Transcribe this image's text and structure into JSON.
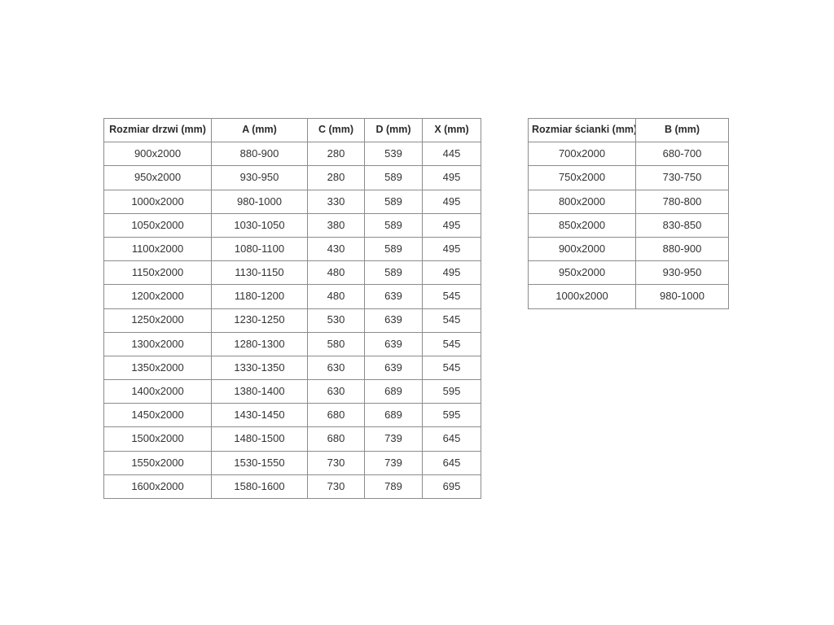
{
  "colors": {
    "background": "#ffffff",
    "border_inner": "#8c8c8c",
    "border_outer": "#4a4a4a",
    "text": "#333333"
  },
  "chart_data": [
    {
      "type": "table",
      "name": "door-sizes",
      "columns": [
        "Rozmiar drzwi (mm)",
        "A (mm)",
        "C (mm)",
        "D (mm)",
        "X (mm)"
      ],
      "rows": [
        [
          "900x2000",
          "880-900",
          "280",
          "539",
          "445"
        ],
        [
          "950x2000",
          "930-950",
          "280",
          "589",
          "495"
        ],
        [
          "1000x2000",
          "980-1000",
          "330",
          "589",
          "495"
        ],
        [
          "1050x2000",
          "1030-1050",
          "380",
          "589",
          "495"
        ],
        [
          "1100x2000",
          "1080-1100",
          "430",
          "589",
          "495"
        ],
        [
          "1150x2000",
          "1130-1150",
          "480",
          "589",
          "495"
        ],
        [
          "1200x2000",
          "1180-1200",
          "480",
          "639",
          "545"
        ],
        [
          "1250x2000",
          "1230-1250",
          "530",
          "639",
          "545"
        ],
        [
          "1300x2000",
          "1280-1300",
          "580",
          "639",
          "545"
        ],
        [
          "1350x2000",
          "1330-1350",
          "630",
          "639",
          "545"
        ],
        [
          "1400x2000",
          "1380-1400",
          "630",
          "689",
          "595"
        ],
        [
          "1450x2000",
          "1430-1450",
          "680",
          "689",
          "595"
        ],
        [
          "1500x2000",
          "1480-1500",
          "680",
          "739",
          "645"
        ],
        [
          "1550x2000",
          "1530-1550",
          "730",
          "739",
          "645"
        ],
        [
          "1600x2000",
          "1580-1600",
          "730",
          "789",
          "695"
        ]
      ]
    },
    {
      "type": "table",
      "name": "wall-sizes",
      "columns": [
        "Rozmiar ścianki (mm)",
        "B (mm)"
      ],
      "rows": [
        [
          "700x2000",
          "680-700"
        ],
        [
          "750x2000",
          "730-750"
        ],
        [
          "800x2000",
          "780-800"
        ],
        [
          "850x2000",
          "830-850"
        ],
        [
          "900x2000",
          "880-900"
        ],
        [
          "950x2000",
          "930-950"
        ],
        [
          "1000x2000",
          "980-1000"
        ]
      ]
    }
  ]
}
